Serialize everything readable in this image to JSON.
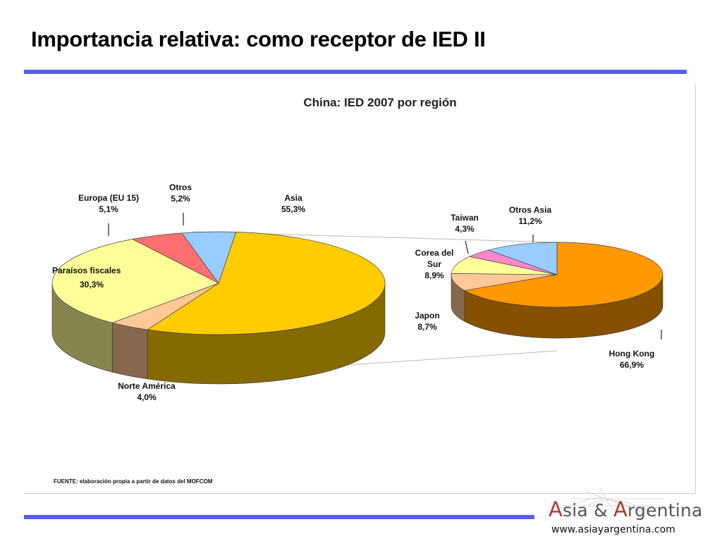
{
  "slide": {
    "title": "Importancia relativa: como receptor de IED II"
  },
  "chart_data": [
    {
      "type": "pie",
      "title": "China: IED 2007 por región",
      "slices": [
        {
          "label": "Asia",
          "value": 55.3,
          "display": "55,3%",
          "color": "#ffcc00"
        },
        {
          "label": "Norte América",
          "value": 4.0,
          "display": "4,0%",
          "color": "#ffc896"
        },
        {
          "label": "Paraísos fiscales",
          "value": 30.3,
          "display": "30,3%",
          "color": "#ffff99"
        },
        {
          "label": "Europa (EU 15)",
          "value": 5.1,
          "display": "5,1%",
          "color": "#ff6f6f"
        },
        {
          "label": "Otros",
          "value": 5.2,
          "display": "5,2%",
          "color": "#99ccff"
        }
      ]
    },
    {
      "type": "pie",
      "title": "",
      "slices": [
        {
          "label": "Hong Kong",
          "value": 66.9,
          "display": "66,9%",
          "color": "#ff9900"
        },
        {
          "label": "Japon",
          "value": 8.7,
          "display": "8,7%",
          "color": "#ffc896"
        },
        {
          "label": "Corea del Sur",
          "value": 8.9,
          "display": "8,9%",
          "color": "#ffff99"
        },
        {
          "label": "Taiwan",
          "value": 4.3,
          "display": "4,3%",
          "color": "#ff88cc"
        },
        {
          "label": "Otros Asia",
          "value": 11.2,
          "display": "11,2%",
          "color": "#99ccff"
        }
      ]
    }
  ],
  "source_note": "FUENTE: elaboración propia a partir de datos del MOFCOM",
  "footer": {
    "logo_text": "Asia & Argentina",
    "website": "www.asiayargentina.com"
  }
}
